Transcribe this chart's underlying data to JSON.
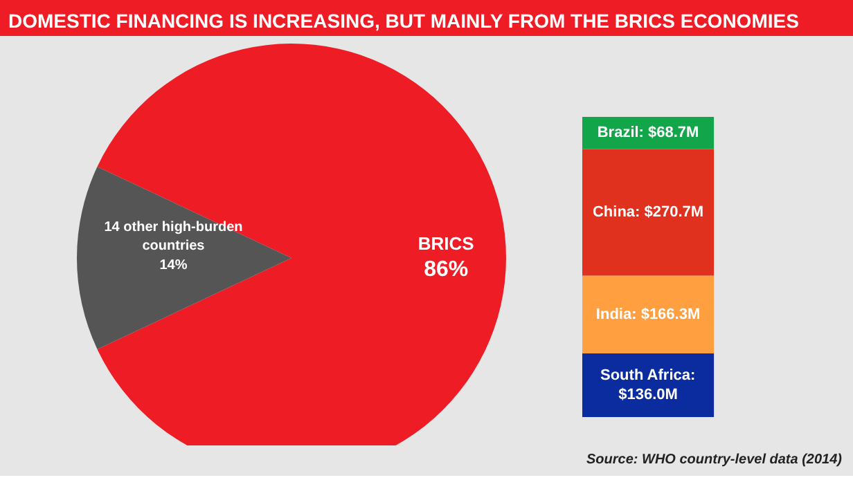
{
  "chart_data": [
    {
      "type": "pie",
      "title": "DOMESTIC FINANCING IS INCREASING, BUT MAINLY FROM THE BRICS ECONOMIES",
      "categories": [
        "BRICS",
        "14 other high-burden countries"
      ],
      "values": [
        86,
        14
      ],
      "colors": [
        "#ee1c25",
        "#555555"
      ],
      "value_labels": [
        "86%",
        "14%"
      ]
    },
    {
      "type": "bar",
      "stacked": true,
      "categories": [
        null
      ],
      "series": [
        {
          "color": "#0a2c9e",
          "values": [
            136.0
          ],
          "value_labels": [
            "South Africa: $136.0M"
          ]
        },
        {
          "color": "#ff9f40",
          "values": [
            166.3
          ],
          "value_labels": [
            "India: $166.3M"
          ]
        },
        {
          "color": "#e0301e",
          "values": [
            270.7
          ],
          "value_labels": [
            "China: $270.7M"
          ]
        },
        {
          "color": "#12a54a",
          "values": [
            68.7
          ],
          "value_labels": [
            "Brazil: $68.7M"
          ]
        }
      ],
      "annotations": [
        "Source: WHO country-level data (2014)"
      ]
    }
  ]
}
